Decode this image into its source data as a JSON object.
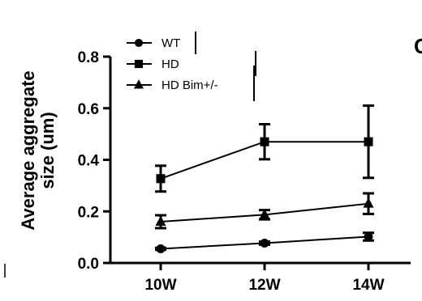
{
  "panel_letter": "C",
  "chart_data": {
    "type": "line",
    "title": "",
    "xlabel": "",
    "ylabel": [
      "Average aggregate",
      "size (um)"
    ],
    "categories": [
      "10W",
      "12W",
      "14W"
    ],
    "ylim": [
      0.0,
      0.8
    ],
    "yticks": [
      "0.0",
      "0.2",
      "0.4",
      "0.6",
      "0.8"
    ],
    "grid": false,
    "legend_position": "top-left",
    "series": [
      {
        "name": "WT",
        "marker": "circle",
        "values": [
          0.055,
          0.077,
          0.102
        ],
        "errors": [
          0.004,
          0.006,
          0.015
        ]
      },
      {
        "name": "HD",
        "marker": "square",
        "values": [
          0.327,
          0.47,
          0.47
        ],
        "errors": [
          0.05,
          0.068,
          0.14
        ]
      },
      {
        "name": "HD Bim+/-",
        "marker": "triangle",
        "values": [
          0.16,
          0.187,
          0.23
        ],
        "errors": [
          0.025,
          0.018,
          0.04
        ]
      }
    ]
  }
}
